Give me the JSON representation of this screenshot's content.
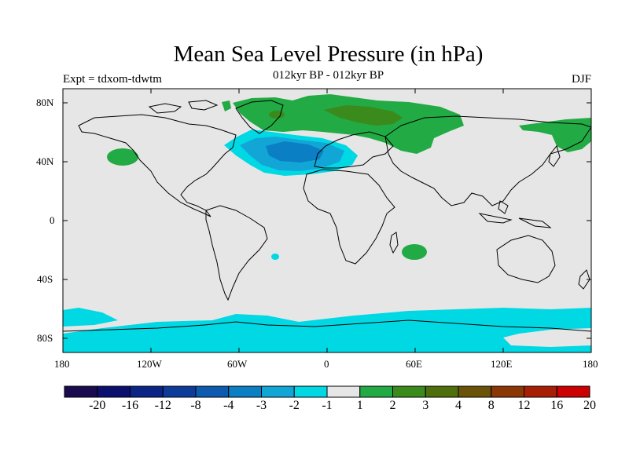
{
  "title": "Mean Sea Level Pressure (in hPa)",
  "subtitle": "012kyr BP - 012kyr BP",
  "left_string": "Expt = tdxom-tdwtm",
  "right_string": "DJF",
  "lat_ticks": [
    "80N",
    "40N",
    "0",
    "40S",
    "80S"
  ],
  "lon_ticks": [
    "180",
    "120W",
    "60W",
    "0",
    "60E",
    "120E",
    "180"
  ],
  "colorbar": {
    "labels": [
      "-20",
      "-16",
      "-12",
      "-8",
      "-4",
      "-3",
      "-2",
      "-1",
      "1",
      "2",
      "3",
      "4",
      "8",
      "12",
      "16",
      "20"
    ],
    "colors": [
      "#1a0a50",
      "#0b0f6e",
      "#0a2585",
      "#0d3b9a",
      "#0c5bb0",
      "#0a7fc3",
      "#12a6d6",
      "#00d8e4",
      "#e6e6e6",
      "#22aa44",
      "#3b8a1c",
      "#4f6e0c",
      "#6a5208",
      "#8b3805",
      "#a81e05",
      "#cc0000"
    ]
  },
  "map_colors": {
    "background": "#e6e6e6",
    "coast": "#000000"
  },
  "field_regions": [
    {
      "name": "north-atlantic-low",
      "level": "-1"
    },
    {
      "name": "north-atlantic-low-core",
      "level": "-2"
    },
    {
      "name": "north-atlantic-low-center",
      "level": "-3"
    },
    {
      "name": "southern-ocean-band",
      "level": "-1"
    },
    {
      "name": "eurasia-arctic-high",
      "level": "1"
    },
    {
      "name": "eurasia-arctic-high-core",
      "level": "2"
    },
    {
      "name": "north-pacific-high",
      "level": "1"
    },
    {
      "name": "east-asia-high",
      "level": "1"
    },
    {
      "name": "south-indian-high",
      "level": "1"
    }
  ]
}
